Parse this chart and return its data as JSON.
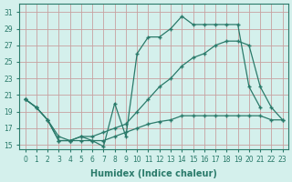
{
  "xlabel": "Humidex (Indice chaleur)",
  "background_color": "#d4f0ec",
  "grid_color": "#c8a0a0",
  "line_color": "#2a7a6a",
  "series": {
    "s1_x": [
      0,
      1,
      2,
      3,
      4,
      5,
      6,
      7,
      8,
      9,
      10,
      11,
      12,
      13,
      14,
      15,
      16,
      17,
      18,
      19,
      20,
      21
    ],
    "s1_y": [
      20.5,
      19.5,
      18.0,
      15.5,
      15.5,
      16.0,
      15.5,
      14.8,
      20.0,
      16.0,
      26.0,
      28.0,
      28.0,
      29.0,
      30.5,
      29.5,
      29.5,
      29.5,
      29.5,
      29.5,
      22.0,
      19.5
    ],
    "s2_x": [
      0,
      1,
      2,
      3,
      4,
      5,
      6,
      7,
      8,
      9,
      10,
      11,
      12,
      13,
      14,
      15,
      16,
      17,
      18,
      19,
      20,
      21,
      22,
      23
    ],
    "s2_y": [
      20.5,
      19.5,
      18.0,
      16.0,
      15.5,
      16.0,
      16.0,
      16.5,
      17.0,
      17.5,
      19.0,
      20.5,
      22.0,
      23.0,
      24.5,
      25.5,
      26.0,
      27.0,
      27.5,
      27.5,
      27.0,
      22.0,
      19.5,
      18.0
    ],
    "s3_x": [
      0,
      1,
      2,
      3,
      4,
      5,
      6,
      7,
      8,
      9,
      10,
      11,
      12,
      13,
      14,
      15,
      16,
      17,
      18,
      19,
      20,
      21,
      22,
      23
    ],
    "s3_y": [
      20.5,
      19.5,
      18.0,
      15.5,
      15.5,
      15.5,
      15.5,
      15.5,
      16.0,
      16.5,
      17.0,
      17.5,
      17.8,
      18.0,
      18.5,
      18.5,
      18.5,
      18.5,
      18.5,
      18.5,
      18.5,
      18.5,
      18.0,
      18.0
    ]
  },
  "ylim": [
    14.5,
    32
  ],
  "xlim": [
    -0.5,
    23.5
  ],
  "yticks": [
    15,
    17,
    19,
    21,
    23,
    25,
    27,
    29,
    31
  ],
  "xticks": [
    0,
    1,
    2,
    3,
    4,
    5,
    6,
    7,
    8,
    9,
    10,
    11,
    12,
    13,
    14,
    15,
    16,
    17,
    18,
    19,
    20,
    21,
    22,
    23
  ],
  "tick_fontsize": 5.5,
  "xlabel_fontsize": 7
}
